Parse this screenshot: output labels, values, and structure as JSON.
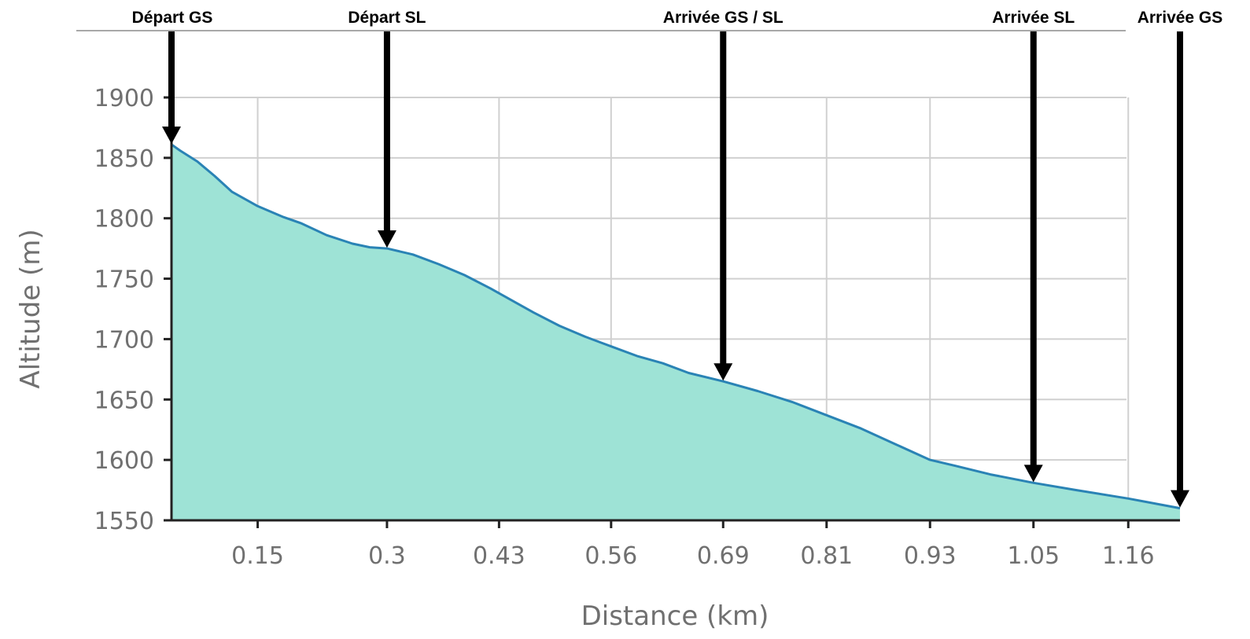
{
  "chart_data": {
    "type": "area",
    "title": "",
    "xlabel": "Distance (km)",
    "ylabel": "Altitude (m)",
    "xlim": [
      0.05,
      1.22
    ],
    "ylim": [
      1550,
      1900
    ],
    "x_ticks": [
      "0.15",
      "0.3",
      "0.43",
      "0.56",
      "0.69",
      "0.81",
      "0.93",
      "1.05",
      "1.16"
    ],
    "y_ticks": [
      "1900",
      "1850",
      "1800",
      "1750",
      "1700",
      "1650",
      "1600",
      "1550"
    ],
    "grid": true,
    "colors": {
      "fill": "#9ee3d6",
      "line": "#2a83b5",
      "grid": "#d0d0d0",
      "axis": "#222222",
      "text": "#707070",
      "arrow": "#000000"
    },
    "series": [
      {
        "name": "",
        "x": [
          0.05,
          0.06,
          0.08,
          0.1,
          0.12,
          0.15,
          0.18,
          0.2,
          0.23,
          0.26,
          0.28,
          0.3,
          0.33,
          0.36,
          0.39,
          0.42,
          0.44,
          0.47,
          0.5,
          0.53,
          0.56,
          0.59,
          0.62,
          0.65,
          0.69,
          0.73,
          0.77,
          0.81,
          0.85,
          0.89,
          0.93,
          0.96,
          1.0,
          1.05,
          1.1,
          1.16,
          1.22
        ],
        "y": [
          1861,
          1856,
          1847,
          1835,
          1822,
          1810,
          1801,
          1796,
          1786,
          1779,
          1776,
          1775,
          1770,
          1762,
          1753,
          1742,
          1734,
          1722,
          1711,
          1702,
          1694,
          1686,
          1680,
          1672,
          1665,
          1657,
          1648,
          1637,
          1626,
          1613,
          1600,
          1595,
          1588,
          1581,
          1575,
          1568,
          1560
        ]
      }
    ],
    "markers": [
      {
        "label": "Départ GS",
        "x": 0.05,
        "y": 1861
      },
      {
        "label": "Départ SL",
        "x": 0.3,
        "y": 1775
      },
      {
        "label": "Arrivée GS / SL",
        "x": 0.69,
        "y": 1665
      },
      {
        "label": "Arrivée SL",
        "x": 1.05,
        "y": 1581
      },
      {
        "label": "Arrivée GS",
        "x": 1.22,
        "y": 1560
      }
    ]
  }
}
